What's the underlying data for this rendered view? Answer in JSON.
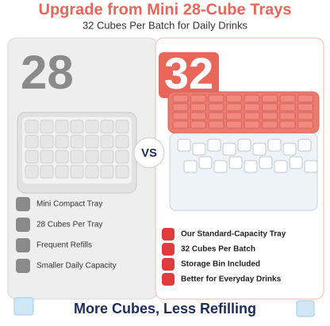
{
  "header": {
    "title": "Upgrade from Mini 28-Cube Trays",
    "subtitle": "32 Cubes Per Batch for Daily Drinks"
  },
  "left": {
    "number": "28",
    "features": [
      "Mini Compact Tray",
      "28 Cubes Per Tray",
      "Frequent Refills",
      "Smaller Daily Capacity"
    ]
  },
  "vs": "VS",
  "right": {
    "number": "32",
    "features": [
      "Our Standard-Capacity Tray",
      "32 Cubes Per Batch",
      "Storage Bin Included",
      "Better for Everyday Drinks"
    ]
  },
  "footer": "More Cubes, Less Refilling"
}
